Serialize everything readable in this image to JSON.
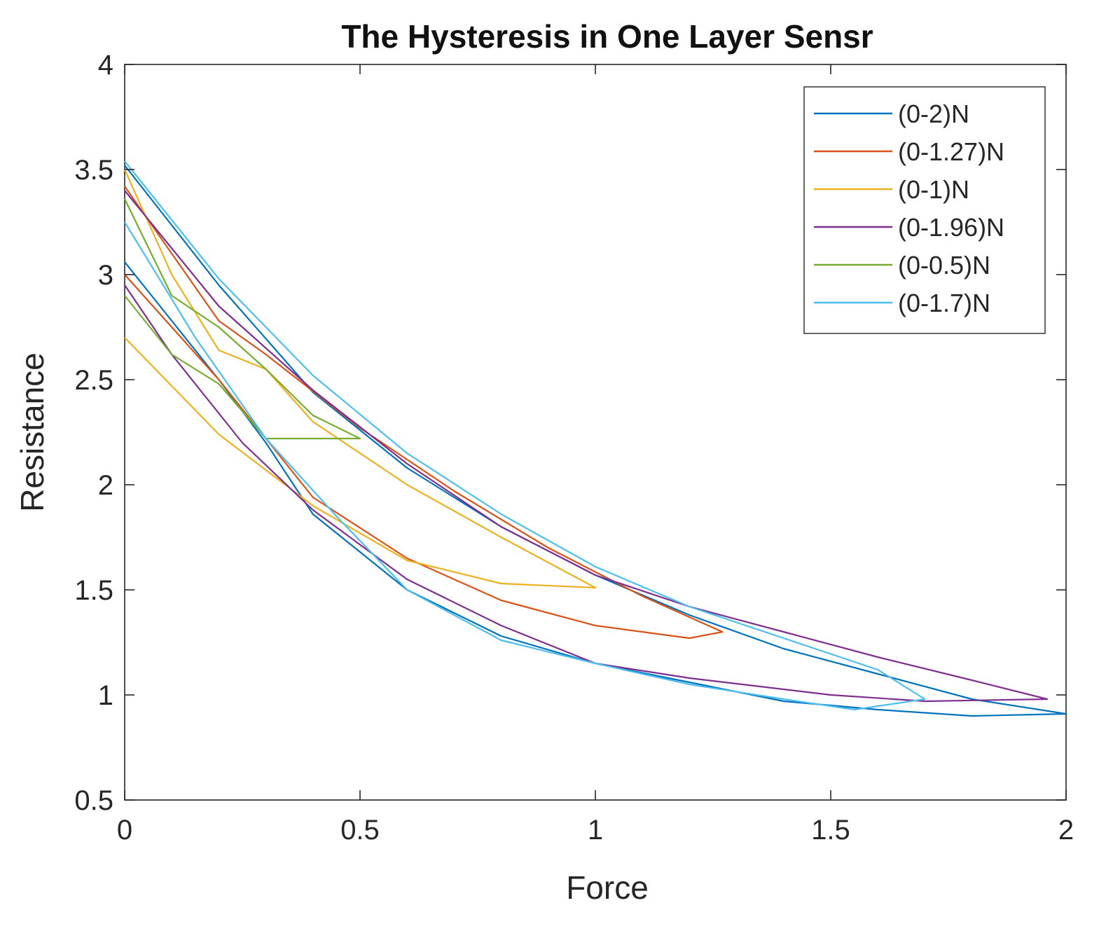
{
  "chart_data": {
    "type": "line",
    "title": "The Hysteresis in One Layer Sensr",
    "xlabel": "Force",
    "ylabel": "Resistance",
    "xlim": [
      0,
      2
    ],
    "ylim": [
      0.5,
      4
    ],
    "xticks": [
      0,
      0.5,
      1,
      1.5,
      2
    ],
    "xtick_labels": [
      "0",
      "0.5",
      "1",
      "1.5",
      "2"
    ],
    "yticks": [
      0.5,
      1,
      1.5,
      2,
      2.5,
      3,
      3.5,
      4
    ],
    "ytick_labels": [
      "0.5",
      "1",
      "1.5",
      "2",
      "2.5",
      "3",
      "3.5",
      "4"
    ],
    "grid": false,
    "legend_position": "top-right",
    "series": [
      {
        "name": "(0-2)N",
        "color": "#0072BD",
        "x": [
          0,
          0.1,
          0.2,
          0.3,
          0.4,
          0.5,
          0.6,
          0.8,
          1.0,
          1.2,
          1.4,
          1.6,
          1.8,
          2.0,
          1.8,
          1.6,
          1.4,
          1.2,
          1.0,
          0.8,
          0.6,
          0.4,
          0.2,
          0
        ],
        "y": [
          3.06,
          2.78,
          2.5,
          2.2,
          1.86,
          1.68,
          1.5,
          1.28,
          1.15,
          1.06,
          0.97,
          0.93,
          0.9,
          0.91,
          0.98,
          1.1,
          1.22,
          1.38,
          1.57,
          1.8,
          2.08,
          2.44,
          2.95,
          3.52
        ]
      },
      {
        "name": "(0-1.27)N",
        "color": "#D95319",
        "x": [
          0,
          0.2,
          0.4,
          0.6,
          0.8,
          1.0,
          1.2,
          1.27,
          1.1,
          0.9,
          0.7,
          0.5,
          0.3,
          0.2,
          0
        ],
        "y": [
          3.0,
          2.5,
          1.94,
          1.65,
          1.45,
          1.33,
          1.27,
          1.3,
          1.47,
          1.7,
          1.97,
          2.27,
          2.62,
          2.78,
          3.42
        ]
      },
      {
        "name": "(0-1)N",
        "color": "#EDB120",
        "x": [
          0,
          0.2,
          0.4,
          0.6,
          0.8,
          1.0,
          0.8,
          0.6,
          0.4,
          0.3,
          0.2,
          0.1,
          0
        ],
        "y": [
          2.7,
          2.24,
          1.9,
          1.64,
          1.53,
          1.51,
          1.75,
          2.0,
          2.3,
          2.55,
          2.64,
          3.0,
          3.5
        ]
      },
      {
        "name": "(0-1.96)N",
        "color": "#7E2F8E",
        "x": [
          0,
          0.1,
          0.25,
          0.4,
          0.6,
          0.8,
          1.0,
          1.2,
          1.5,
          1.7,
          1.96,
          1.8,
          1.6,
          1.4,
          1.2,
          1.0,
          0.8,
          0.6,
          0.4,
          0.2,
          0
        ],
        "y": [
          2.95,
          2.62,
          2.2,
          1.88,
          1.55,
          1.33,
          1.15,
          1.08,
          1.0,
          0.97,
          0.98,
          1.07,
          1.18,
          1.3,
          1.42,
          1.57,
          1.8,
          2.1,
          2.45,
          2.85,
          3.4
        ]
      },
      {
        "name": "(0-0.5)N",
        "color": "#77AC30",
        "x": [
          0,
          0.1,
          0.2,
          0.3,
          0.5,
          0.4,
          0.3,
          0.2,
          0.1,
          0
        ],
        "y": [
          2.9,
          2.62,
          2.48,
          2.22,
          2.22,
          2.33,
          2.55,
          2.75,
          2.9,
          3.36
        ]
      },
      {
        "name": "(0-1.7)N",
        "color": "#4DBEEE",
        "x": [
          0,
          0.15,
          0.3,
          0.45,
          0.6,
          0.8,
          1.0,
          1.2,
          1.4,
          1.55,
          1.7,
          1.6,
          1.4,
          1.2,
          1.0,
          0.8,
          0.6,
          0.4,
          0.2,
          0
        ],
        "y": [
          3.25,
          2.7,
          2.22,
          1.85,
          1.5,
          1.26,
          1.15,
          1.05,
          0.98,
          0.93,
          0.98,
          1.12,
          1.27,
          1.42,
          1.61,
          1.86,
          2.15,
          2.52,
          2.98,
          3.54
        ]
      }
    ]
  }
}
